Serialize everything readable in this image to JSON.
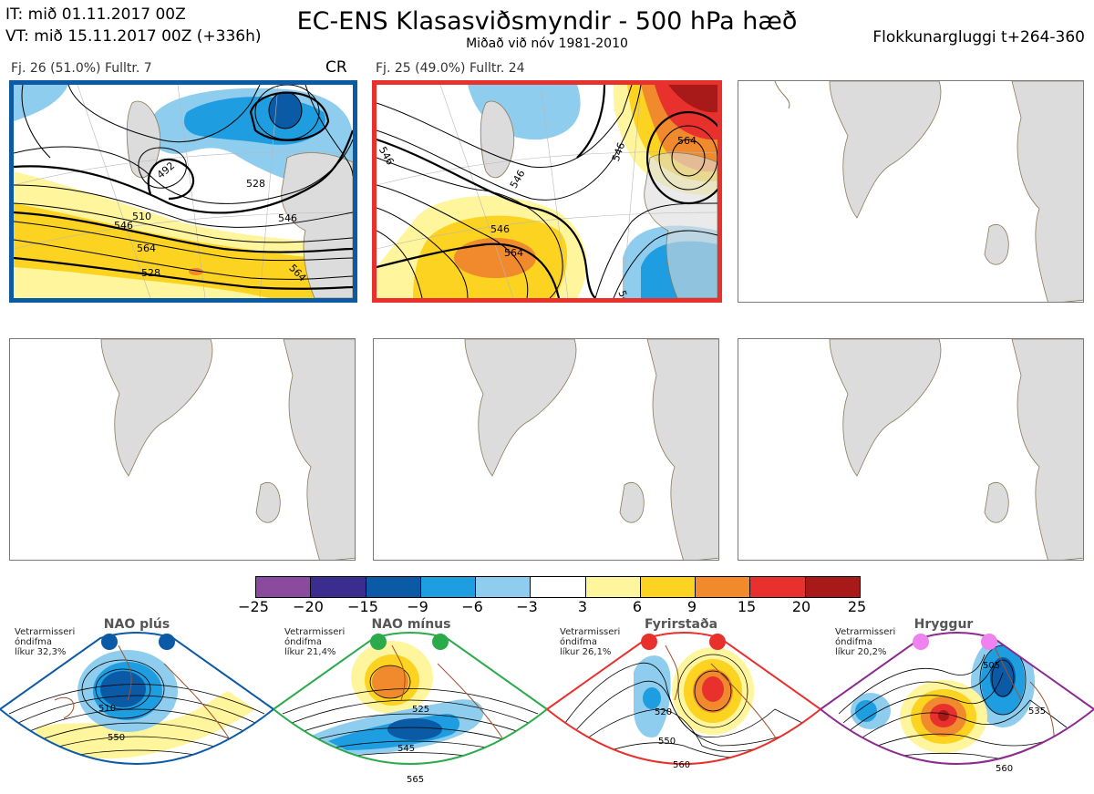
{
  "header": {
    "it_line": "IT: mið 01.11.2017 00Z",
    "vt_line": "VT: mið 15.11.2017 00Z  (+336h)",
    "title": "EC-ENS Klasasviðsmyndir - 500 hPa hæð",
    "subtitle": "Miðað við nóv 1981-2010",
    "window": "Flokkunargluggi t+264-360"
  },
  "clusters": [
    {
      "label": "Fj. 26 (51.0%)   Fulltr. 7",
      "regime_code": "CR",
      "border_color": "#0b5aa5",
      "contour_labels": [
        "510",
        "492",
        "528",
        "546",
        "564",
        "528",
        "546",
        "564"
      ]
    },
    {
      "label": "Fj. 25 (49.0%)   Fulltr. 24",
      "regime_code": "",
      "border_color": "#e8302c",
      "contour_labels": [
        "546",
        "546",
        "564",
        "546",
        "546",
        "564",
        "546"
      ]
    }
  ],
  "colorbar": {
    "ticks": [
      "−25",
      "−20",
      "−15",
      "−9",
      "−6",
      "−3",
      "3",
      "6",
      "9",
      "15",
      "20",
      "25"
    ],
    "colors": [
      "#8a4a9e",
      "#3b2c8f",
      "#0b5aa5",
      "#1e9ee0",
      "#8fcdee",
      "#ffffff",
      "#fff59d",
      "#fcd320",
      "#f08a2c",
      "#e8302c",
      "#a81919"
    ]
  },
  "regimes": [
    {
      "name": "NAO plús",
      "note": [
        "Vetrarmisseri",
        "óndifma",
        "líkur 32,3%"
      ],
      "color": "#0b5aa5",
      "dot_color": "#0b5aa5",
      "contour_labels": [
        "510",
        "550"
      ]
    },
    {
      "name": "NAO mínus",
      "note": [
        "Vetrarmisseri",
        "óndifma",
        "líkur 21,4%"
      ],
      "color": "#2aaa4a",
      "dot_color": "#2aaa4a",
      "contour_labels": [
        "525",
        "545",
        "565"
      ]
    },
    {
      "name": "Fyrirstaða",
      "note": [
        "Vetrarmisseri",
        "óndifma",
        "líkur 26,1%"
      ],
      "color": "#e8302c",
      "dot_color": "#e8302c",
      "contour_labels": [
        "520",
        "550",
        "560"
      ]
    },
    {
      "name": "Hryggur",
      "note": [
        "Vetrarmisseri",
        "óndifma",
        "líkur 20,2%"
      ],
      "color": "#8b2a8f",
      "dot_color": "#ee82ee",
      "contour_labels": [
        "505",
        "535",
        "560"
      ]
    }
  ]
}
